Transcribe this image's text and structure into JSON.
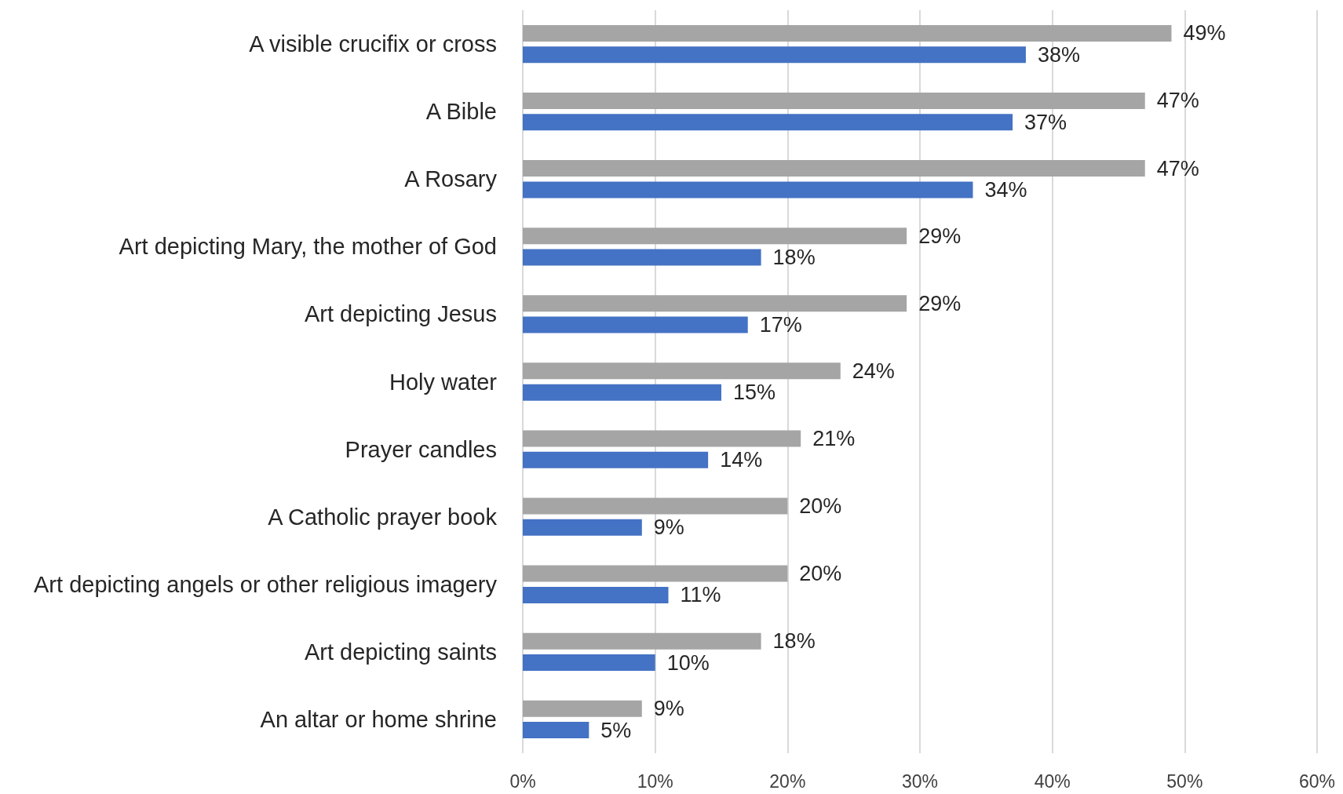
{
  "chart_data": {
    "type": "bar",
    "orientation": "horizontal",
    "categories": [
      "A visible crucifix or cross",
      "A Bible",
      "A Rosary",
      "Art depicting Mary, the mother of God",
      "Art depicting Jesus",
      "Holy water",
      "Prayer candles",
      "A Catholic prayer book",
      "Art depicting angels or other religious imagery",
      "Art depicting saints",
      "An altar or home shrine"
    ],
    "series": [
      {
        "color": "#a5a5a5",
        "values": [
          49,
          47,
          47,
          29,
          29,
          24,
          21,
          20,
          20,
          18,
          9
        ],
        "value_labels": [
          "49%",
          "47%",
          "47%",
          "29%",
          "29%",
          "24%",
          "21%",
          "20%",
          "20%",
          "18%",
          "9%"
        ]
      },
      {
        "color": "#4472c4",
        "values": [
          38,
          37,
          34,
          18,
          17,
          15,
          14,
          9,
          11,
          10,
          5
        ],
        "value_labels": [
          "38%",
          "37%",
          "34%",
          "18%",
          "17%",
          "15%",
          "14%",
          "9%",
          "11%",
          "10%",
          "5%"
        ]
      }
    ],
    "xlim": [
      0,
      60
    ],
    "xticks": [
      {
        "value": 0,
        "label": "0%"
      },
      {
        "value": 10,
        "label": "10%"
      },
      {
        "value": 20,
        "label": "20%"
      },
      {
        "value": 30,
        "label": "30%"
      },
      {
        "value": 40,
        "label": "40%"
      },
      {
        "value": 50,
        "label": "50%"
      },
      {
        "value": 60,
        "label": "60%"
      }
    ],
    "grid": "x"
  }
}
